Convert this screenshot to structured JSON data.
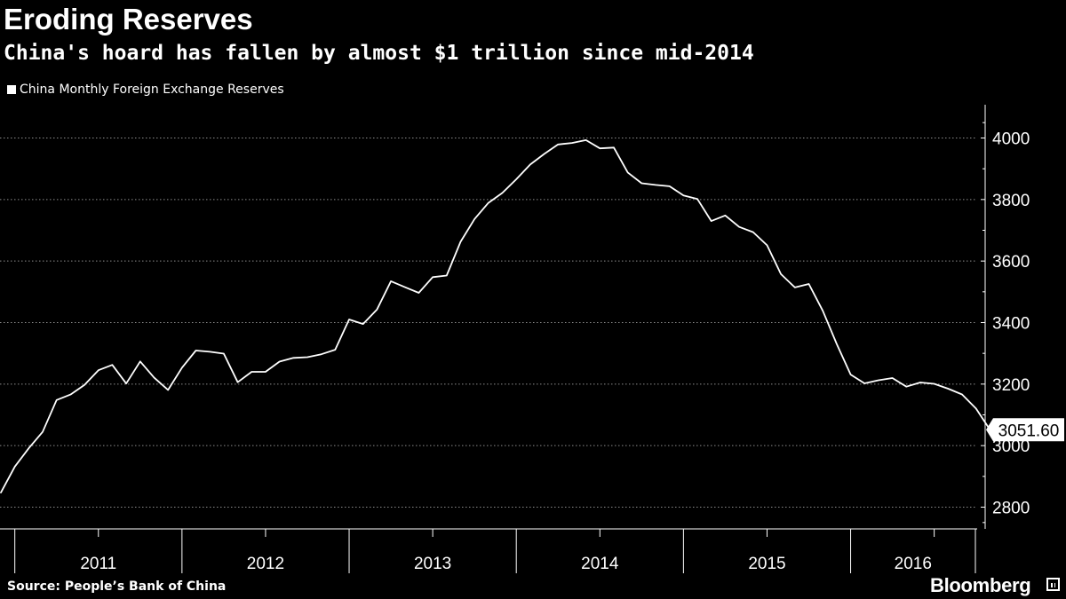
{
  "header": {
    "title": "Eroding Reserves",
    "subtitle": "China's hoard has fallen by almost $1 trillion since mid-2014"
  },
  "legend": {
    "label": "China Monthly Foreign Exchange Reserves"
  },
  "footer": {
    "source": "Source: People’s Bank of China",
    "brand": "Bloomberg"
  },
  "colors": {
    "background": "#000000",
    "line": "#ffffff",
    "grid": "#8c8c8c",
    "axis": "#ffffff"
  },
  "chart_data": {
    "type": "line",
    "ylim": [
      2740,
      4100
    ],
    "yticks": [
      2800,
      3000,
      3200,
      3400,
      3600,
      3800,
      4000
    ],
    "x_year_labels": [
      "2011",
      "2012",
      "2013",
      "2014",
      "2015",
      "2016"
    ],
    "x_range": [
      "2010-12",
      "2016-09"
    ],
    "grid": "horizontal",
    "legend_placement": "top-left",
    "last_value_label": "3051.60",
    "series": [
      {
        "name": "China Monthly Foreign Exchange Reserves",
        "points": [
          [
            "2010-12",
            2847.3
          ],
          [
            "2011-01",
            2931.7
          ],
          [
            "2011-02",
            2991.4
          ],
          [
            "2011-03",
            3044.7
          ],
          [
            "2011-04",
            3148.1
          ],
          [
            "2011-05",
            3166.1
          ],
          [
            "2011-06",
            3197.5
          ],
          [
            "2011-07",
            3245.1
          ],
          [
            "2011-08",
            3262.5
          ],
          [
            "2011-09",
            3201.7
          ],
          [
            "2011-10",
            3273.7
          ],
          [
            "2011-11",
            3220.9
          ],
          [
            "2011-12",
            3181.1
          ],
          [
            "2012-01",
            3253.6
          ],
          [
            "2012-02",
            3309.0
          ],
          [
            "2012-03",
            3305.0
          ],
          [
            "2012-04",
            3299.0
          ],
          [
            "2012-05",
            3206.1
          ],
          [
            "2012-06",
            3240.0
          ],
          [
            "2012-07",
            3240.0
          ],
          [
            "2012-08",
            3273.0
          ],
          [
            "2012-09",
            3285.1
          ],
          [
            "2012-10",
            3287.4
          ],
          [
            "2012-11",
            3297.0
          ],
          [
            "2012-12",
            3311.6
          ],
          [
            "2013-01",
            3410.0
          ],
          [
            "2013-02",
            3395.4
          ],
          [
            "2013-03",
            3442.6
          ],
          [
            "2013-04",
            3534.5
          ],
          [
            "2013-05",
            3515.0
          ],
          [
            "2013-06",
            3496.7
          ],
          [
            "2013-07",
            3547.8
          ],
          [
            "2013-08",
            3553.0
          ],
          [
            "2013-09",
            3662.7
          ],
          [
            "2013-10",
            3736.6
          ],
          [
            "2013-11",
            3789.0
          ],
          [
            "2013-12",
            3821.3
          ],
          [
            "2014-01",
            3866.0
          ],
          [
            "2014-02",
            3913.7
          ],
          [
            "2014-03",
            3948.1
          ],
          [
            "2014-04",
            3978.9
          ],
          [
            "2014-05",
            3983.9
          ],
          [
            "2014-06",
            3993.2
          ],
          [
            "2014-07",
            3966.3
          ],
          [
            "2014-08",
            3968.8
          ],
          [
            "2014-09",
            3887.7
          ],
          [
            "2014-10",
            3852.9
          ],
          [
            "2014-11",
            3847.3
          ],
          [
            "2014-12",
            3843.0
          ],
          [
            "2015-01",
            3813.4
          ],
          [
            "2015-02",
            3801.5
          ],
          [
            "2015-03",
            3730.0
          ],
          [
            "2015-04",
            3748.1
          ],
          [
            "2015-05",
            3711.1
          ],
          [
            "2015-06",
            3693.8
          ],
          [
            "2015-07",
            3651.3
          ],
          [
            "2015-08",
            3557.4
          ],
          [
            "2015-09",
            3514.1
          ],
          [
            "2015-10",
            3525.5
          ],
          [
            "2015-11",
            3438.4
          ],
          [
            "2015-12",
            3330.4
          ],
          [
            "2016-01",
            3230.9
          ],
          [
            "2016-02",
            3202.3
          ],
          [
            "2016-03",
            3212.6
          ],
          [
            "2016-04",
            3219.7
          ],
          [
            "2016-05",
            3191.7
          ],
          [
            "2016-06",
            3205.2
          ],
          [
            "2016-07",
            3201.1
          ],
          [
            "2016-08",
            3185.2
          ],
          [
            "2016-09",
            3166.4
          ],
          [
            "2016-10",
            3120.6
          ],
          [
            "2016-11",
            3051.6
          ]
        ]
      }
    ]
  }
}
